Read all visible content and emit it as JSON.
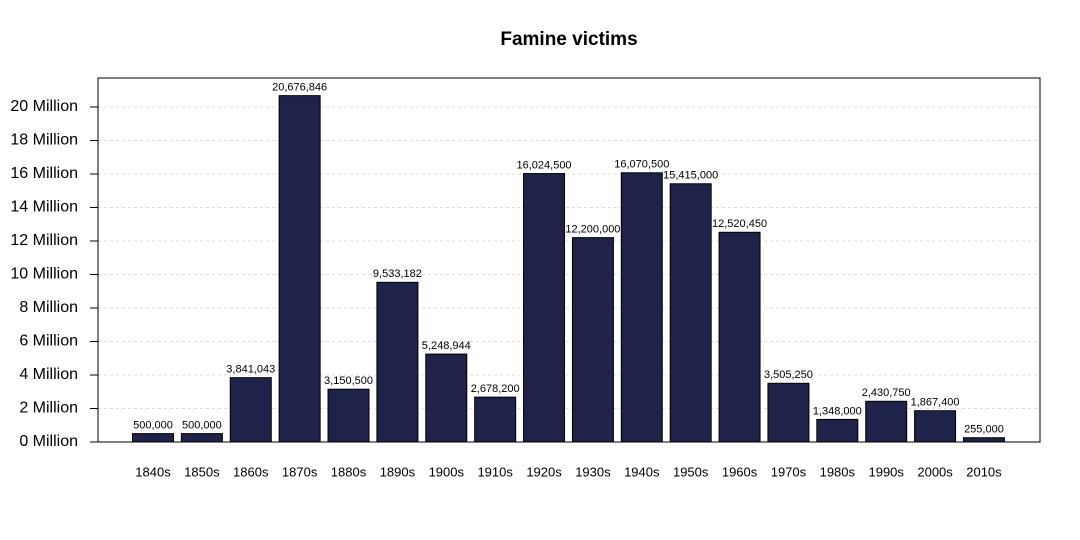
{
  "chart_data": {
    "type": "bar",
    "title": "Famine victims",
    "categories": [
      "1840s",
      "1850s",
      "1860s",
      "1870s",
      "1880s",
      "1890s",
      "1900s",
      "1910s",
      "1920s",
      "1930s",
      "1940s",
      "1950s",
      "1960s",
      "1970s",
      "1980s",
      "1990s",
      "2000s",
      "2010s"
    ],
    "values": [
      500000,
      500000,
      3841043,
      20676846,
      3150500,
      9533182,
      5248944,
      2678200,
      16024500,
      12200000,
      16070500,
      15415000,
      12520450,
      3505250,
      1348000,
      2430750,
      1867400,
      255000
    ],
    "value_labels": [
      "500,000",
      "500,000",
      "3,841,043",
      "20,676,846",
      "3,150,500",
      "9,533,182",
      "5,248,944",
      "2,678,200",
      "16,024,500",
      "12,200,000",
      "16,070,500",
      "15,415,000",
      "12,520,450",
      "3,505,250",
      "1,348,000",
      "2,430,750",
      "1,867,400",
      "255,000"
    ],
    "color": "#1f2349",
    "ylim": [
      0,
      21730000
    ],
    "yticks": [
      {
        "value": 0,
        "label": "0 Million"
      },
      {
        "value": 2000000,
        "label": "2 Million"
      },
      {
        "value": 4000000,
        "label": "4 Million"
      },
      {
        "value": 6000000,
        "label": "6 Million"
      },
      {
        "value": 8000000,
        "label": "8 Million"
      },
      {
        "value": 10000000,
        "label": "10 Million"
      },
      {
        "value": 12000000,
        "label": "12 Million"
      },
      {
        "value": 14000000,
        "label": "14 Million"
      },
      {
        "value": 16000000,
        "label": "16 Million"
      },
      {
        "value": 18000000,
        "label": "18 Million"
      },
      {
        "value": 20000000,
        "label": "20 Million"
      }
    ],
    "grid": true
  }
}
